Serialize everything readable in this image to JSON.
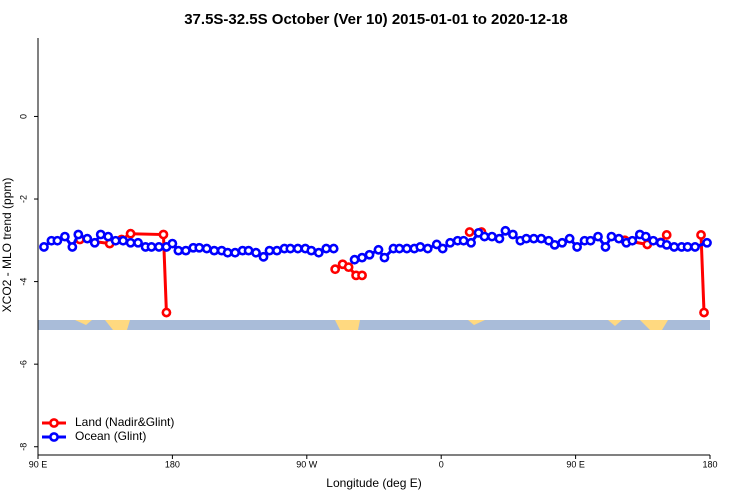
{
  "chart_data": {
    "type": "line",
    "title": "37.5S-32.5S October (Ver 10)   2015-01-01 to 2020-12-18",
    "x_label": "Longitude (deg E)",
    "y_label": "XCO2 - MLO trend (ppm)",
    "xlim": [
      90,
      540
    ],
    "ylim": [
      -8.2,
      1.9
    ],
    "xticks": [
      {
        "value": 90,
        "label": "90 E"
      },
      180,
      {
        "value": 270,
        "label": "90 W"
      },
      {
        "value": 360,
        "label": "0"
      },
      {
        "value": 450,
        "label": "90 E"
      },
      {
        "value": 540,
        "label": "180"
      }
    ],
    "yticks": [
      0,
      -2,
      -4,
      -6,
      -8
    ],
    "legend": "bottom-left",
    "series": [
      {
        "name": "Land (Nadir&Glint)",
        "color": "#ff0000",
        "x": [
          118,
          138,
          146,
          152,
          174,
          176,
          null,
          289,
          294,
          298,
          303,
          307,
          null,
          379,
          387,
          null,
          483,
          498,
          507,
          511,
          null,
          534,
          536
        ],
        "values": [
          -2.98,
          -3.08,
          -2.98,
          -2.84,
          -2.86,
          -4.75,
          null,
          -3.7,
          -3.58,
          -3.65,
          -3.85,
          -3.85,
          null,
          -2.8,
          -2.8,
          null,
          -3.0,
          -3.1,
          -3.05,
          -2.87,
          null,
          -2.87,
          -4.75
        ]
      },
      {
        "name": "Ocean (Glint)",
        "color": "#0000ff",
        "x": [
          94,
          99,
          103,
          108,
          113,
          117,
          123,
          128,
          132,
          137,
          142,
          147,
          152,
          157,
          162,
          166,
          171,
          176,
          180,
          184,
          189,
          194,
          198,
          203,
          208,
          213,
          217,
          222,
          227,
          231,
          236,
          241,
          245,
          250,
          255,
          259,
          264,
          269,
          273,
          278,
          283,
          288,
          null,
          302,
          307,
          312,
          318,
          322,
          328,
          332,
          337,
          342,
          346,
          351,
          357,
          361,
          366,
          371,
          375,
          380,
          385,
          389,
          394,
          399,
          403,
          408,
          413,
          417,
          422,
          427,
          432,
          436,
          441,
          446,
          451,
          456,
          460,
          465,
          470,
          474,
          479,
          484,
          488,
          493,
          497,
          502,
          507,
          511,
          516,
          521,
          525,
          530,
          538
        ],
        "values": [
          -3.16,
          -3.01,
          -3.01,
          -2.91,
          -3.16,
          -2.86,
          -2.96,
          -3.06,
          -2.86,
          -2.91,
          -3.01,
          -3.01,
          -3.06,
          -3.06,
          -3.16,
          -3.16,
          -3.16,
          -3.16,
          -3.08,
          -3.25,
          -3.25,
          -3.18,
          -3.18,
          -3.2,
          -3.25,
          -3.25,
          -3.3,
          -3.3,
          -3.25,
          -3.25,
          -3.3,
          -3.4,
          -3.25,
          -3.25,
          -3.2,
          -3.2,
          -3.2,
          -3.2,
          -3.25,
          -3.3,
          -3.2,
          -3.2,
          null,
          -3.47,
          -3.42,
          -3.35,
          -3.23,
          -3.42,
          -3.2,
          -3.2,
          -3.2,
          -3.2,
          -3.16,
          -3.2,
          -3.1,
          -3.2,
          -3.06,
          -3.01,
          -3.01,
          -3.06,
          -2.82,
          -2.91,
          -2.91,
          -2.96,
          -2.77,
          -2.86,
          -3.01,
          -2.96,
          -2.96,
          -2.96,
          -3.01,
          -3.11,
          -3.06,
          -2.96,
          -3.16,
          -3.01,
          -3.01,
          -2.91,
          -3.16,
          -2.91,
          -2.96,
          -3.06,
          -3.01,
          -2.86,
          -2.91,
          -3.01,
          -3.06,
          -3.11,
          -3.16,
          -3.16,
          -3.16,
          -3.16,
          -3.06
        ]
      }
    ]
  }
}
